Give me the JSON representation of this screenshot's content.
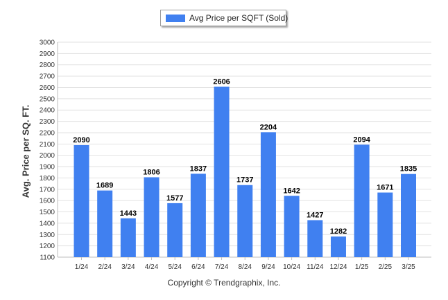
{
  "legend": {
    "label": "Avg Price per SQFT (Sold)",
    "color": "#4080f0"
  },
  "copyright": "Copyright © Trendgraphix, Inc.",
  "chart_data": {
    "type": "bar",
    "title": "",
    "xlabel": "",
    "ylabel": "Avg. Price per SQ. FT.",
    "ylim": [
      1100,
      3000
    ],
    "ytick_step": 100,
    "grid": true,
    "legend_position": "top-center",
    "categories": [
      "1/24",
      "2/24",
      "3/24",
      "4/24",
      "5/24",
      "6/24",
      "7/24",
      "8/24",
      "9/24",
      "10/24",
      "11/24",
      "12/24",
      "1/25",
      "2/25",
      "3/25"
    ],
    "series": [
      {
        "name": "Avg Price per SQFT (Sold)",
        "color": "#4080f0",
        "values": [
          2090,
          1689,
          1443,
          1806,
          1577,
          1837,
          2606,
          1737,
          2204,
          1642,
          1427,
          1282,
          2094,
          1671,
          1835
        ]
      }
    ]
  }
}
